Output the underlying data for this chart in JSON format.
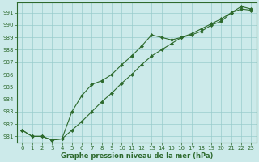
{
  "line1_x": [
    0,
    1,
    2,
    3,
    4,
    5,
    6,
    7,
    8,
    9,
    10,
    11,
    12,
    13,
    14,
    15,
    16,
    17,
    18,
    19,
    20,
    21,
    22,
    23
  ],
  "line1_y": [
    981.5,
    981.0,
    981.0,
    980.7,
    980.8,
    983.0,
    984.3,
    985.2,
    985.5,
    986.0,
    986.8,
    987.5,
    988.3,
    989.2,
    989.0,
    988.8,
    989.0,
    989.2,
    989.5,
    990.0,
    990.3,
    991.0,
    991.5,
    991.3
  ],
  "line2_x": [
    0,
    1,
    2,
    3,
    4,
    5,
    6,
    7,
    8,
    9,
    10,
    11,
    12,
    13,
    14,
    15,
    16,
    17,
    18,
    19,
    20,
    21,
    22,
    23
  ],
  "line2_y": [
    981.5,
    981.0,
    981.0,
    980.7,
    980.8,
    981.5,
    982.2,
    983.0,
    983.8,
    984.5,
    985.3,
    986.0,
    986.8,
    987.5,
    988.0,
    988.5,
    989.0,
    989.3,
    989.7,
    990.1,
    990.5,
    991.0,
    991.3,
    991.2
  ],
  "line_color": "#2d6a2d",
  "bg_color": "#cceaea",
  "grid_color": "#99cccc",
  "xlabel": "Graphe pression niveau de la mer (hPa)",
  "ylim_min": 980.5,
  "ylim_max": 991.8,
  "xlim_min": -0.5,
  "xlim_max": 23.5,
  "yticks": [
    981,
    982,
    983,
    984,
    985,
    986,
    987,
    988,
    989,
    990,
    991
  ],
  "xticks": [
    0,
    1,
    2,
    3,
    4,
    5,
    6,
    7,
    8,
    9,
    10,
    11,
    12,
    13,
    14,
    15,
    16,
    17,
    18,
    19,
    20,
    21,
    22,
    23
  ],
  "tick_fontsize": 5.0,
  "xlabel_fontsize": 6.0
}
